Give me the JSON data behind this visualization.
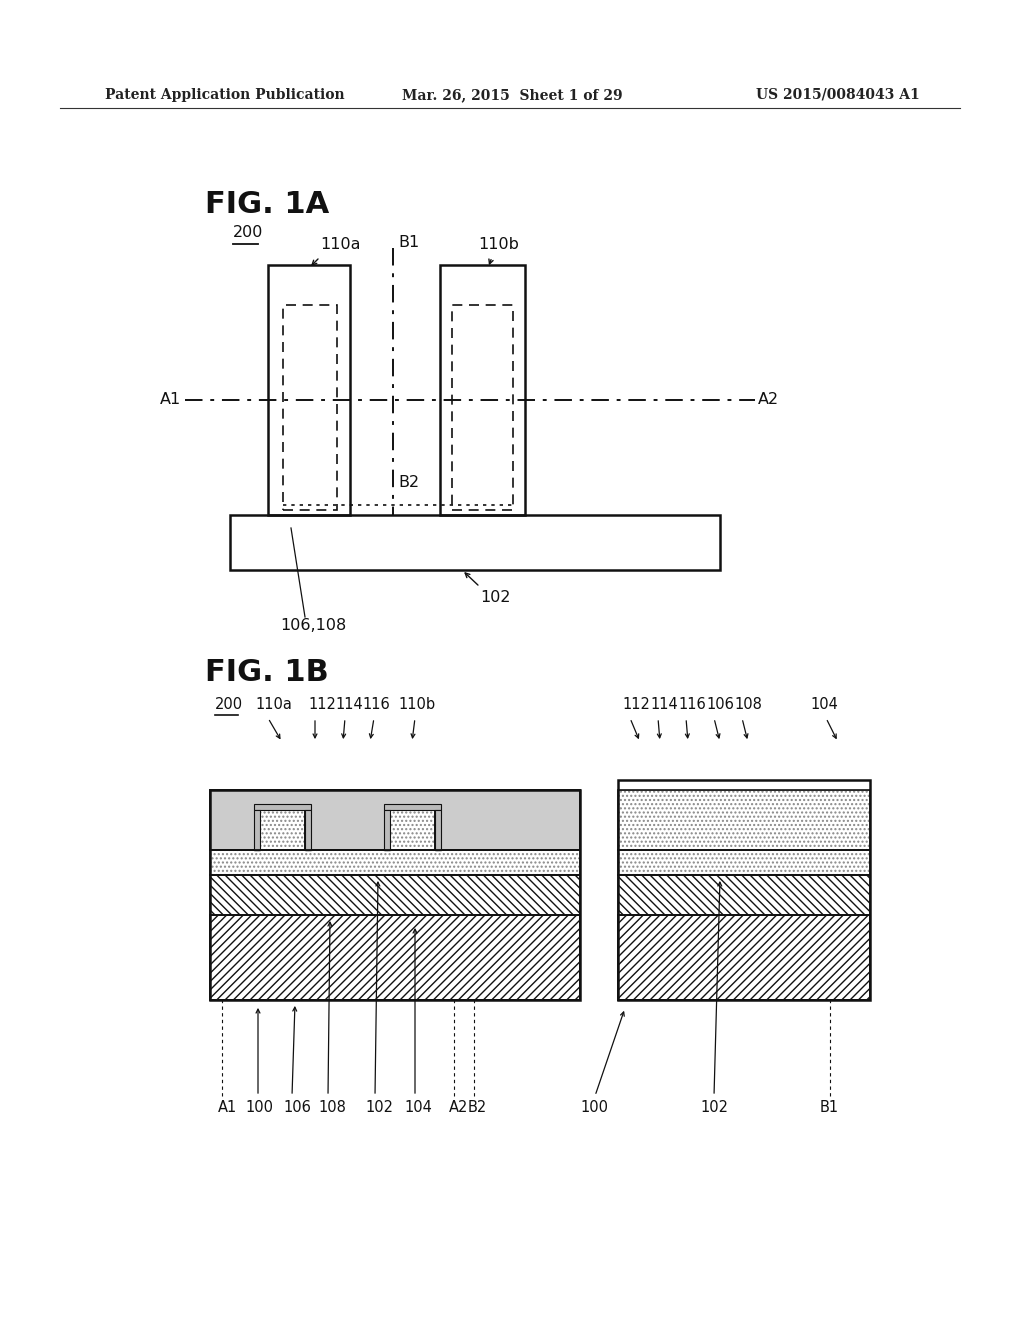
{
  "bg_color": "#ffffff",
  "header_left": "Patent Application Publication",
  "header_mid": "Mar. 26, 2015  Sheet 1 of 29",
  "header_right": "US 2015/0084043 A1",
  "fig1a_label": "FIG. 1A",
  "fig1b_label": "FIG. 1B"
}
